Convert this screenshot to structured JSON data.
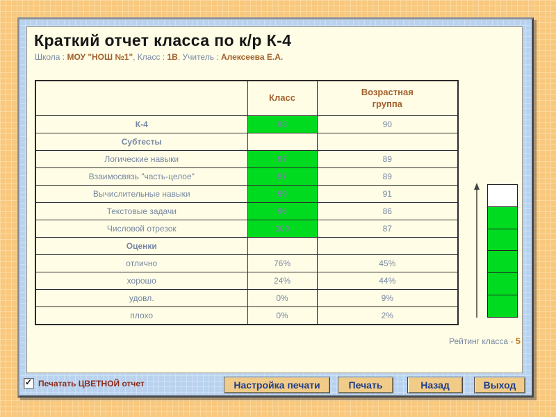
{
  "header": {
    "title": "Краткий отчет класса по к/р К-4",
    "meta_parts": [
      {
        "kind": "label",
        "text": "Школа : "
      },
      {
        "kind": "value",
        "text": "МОУ \"НОШ №1\""
      },
      {
        "kind": "label",
        "text": ", Класс : "
      },
      {
        "kind": "value",
        "text": "1В"
      },
      {
        "kind": "label",
        "text": ", Учитель : "
      },
      {
        "kind": "value",
        "text": "Алексеева Е.А."
      }
    ]
  },
  "table": {
    "columns": [
      "",
      "Класс",
      "Возрастная группа"
    ],
    "rows": [
      {
        "label": "К-4",
        "section": true,
        "class_value": "98",
        "group_value": "90",
        "green": true
      },
      {
        "label": "Субтесты",
        "section": true,
        "class_value": "",
        "group_value": "",
        "green": false
      },
      {
        "label": "Логические навыки",
        "section": false,
        "class_value": "97",
        "group_value": "89",
        "green": true
      },
      {
        "label": "Взаимосвязь \"часть-целое\"",
        "section": false,
        "class_value": "97",
        "group_value": "89",
        "green": true
      },
      {
        "label": "Вычислительные навыки",
        "section": false,
        "class_value": "99",
        "group_value": "91",
        "green": true
      },
      {
        "label": "Текстовые задачи",
        "section": false,
        "class_value": "96",
        "group_value": "86",
        "green": true
      },
      {
        "label": "Числовой отрезок",
        "section": false,
        "class_value": "100",
        "group_value": "87",
        "green": true
      },
      {
        "label": "Оценки",
        "section": true,
        "class_value": "",
        "group_value": "",
        "green": false
      },
      {
        "label": "отлично",
        "section": false,
        "class_value": "76%",
        "group_value": "45%",
        "green": false
      },
      {
        "label": "хорошо",
        "section": false,
        "class_value": "24%",
        "group_value": "44%",
        "green": false
      },
      {
        "label": "удовл.",
        "section": false,
        "class_value": "0%",
        "group_value": "9%",
        "green": false
      },
      {
        "label": "плохо",
        "section": false,
        "class_value": "0%",
        "group_value": "2%",
        "green": false
      }
    ]
  },
  "rating": {
    "label": "Рейтинг класса - ",
    "value": "5",
    "scale_cells": 6,
    "filled_cells": 5
  },
  "footer": {
    "checkbox_label": "Печатать ЦВЕТНОЙ отчет",
    "checkbox_checked": true,
    "buttons": [
      {
        "label": "Настройка печати"
      },
      {
        "label": "Печать"
      },
      {
        "label": "Назад"
      },
      {
        "label": "Выход"
      }
    ]
  },
  "colors": {
    "highlight_green": "#00DB20",
    "section_brown": "#A2602C",
    "value_blue_gray": "#7787A3",
    "button_face": "#F1CC89",
    "button_text": "#1F3E8C",
    "checkbox_label_color": "#8A2B1C",
    "rating_value_color": "#C7791E"
  }
}
